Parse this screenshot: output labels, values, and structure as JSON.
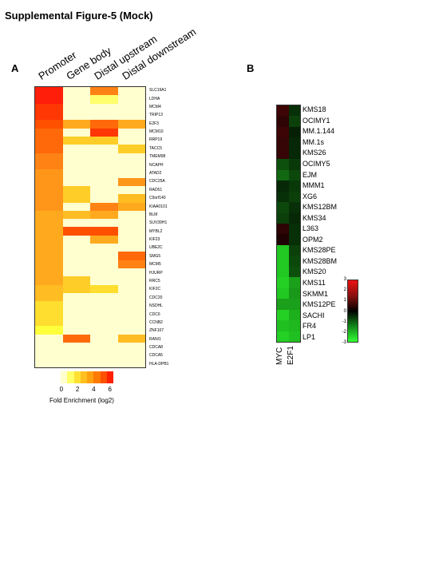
{
  "title": "Supplemental Figure-5 (Mock)",
  "panel_a": {
    "label": "A",
    "columns": [
      "Promoter",
      "Gene body",
      "Distal upstream",
      "Distal downstream"
    ],
    "genes": [
      "SLC19A1",
      "LDHA",
      "MCM4",
      "TRIP13",
      "E2F3",
      "MCM10",
      "RRP19",
      "TACC5",
      "TMEM98",
      "NCAPH",
      "ATAD2",
      "CDC25A",
      "RAD51",
      "C9orf140",
      "KIAA0101",
      "BLM",
      "SUV39H1",
      "MYBL2",
      "KIF23",
      "UBE2C",
      "SMG5",
      "MCM5",
      "HJURP",
      "RRC5",
      "KIF2C",
      "CDC20",
      "NSDHL",
      "CDC6",
      "CCNB2",
      "ZNF107",
      "RANI1",
      "CDCA8",
      "CDCA5",
      "HLA-DPB1"
    ],
    "scale_colors": [
      "#ffffcc",
      "#ffff66",
      "#ffe033",
      "#ffc020",
      "#ffa010",
      "#ff7a00",
      "#ff5000",
      "#ff2000"
    ],
    "scale_ticks": [
      "0",
      "2",
      "4",
      "6"
    ],
    "scale_title": "Fold Enrichment (log2)"
  },
  "panel_b": {
    "label": "B",
    "samples": [
      "KMS18",
      "OCIMY1",
      "MM.1.144",
      "MM.1s",
      "KMS26",
      "OCIMY5",
      "EJM",
      "MMM1",
      "XG6",
      "KMS12BM",
      "KMS34",
      "L363",
      "OPM2",
      "KMS28PE",
      "KMS28BM",
      "KMS20",
      "KMS11",
      "SKMM1",
      "KMS12PE",
      "SACHI",
      "FR4",
      "LP1"
    ],
    "columns": [
      "MYC",
      "E2F1"
    ],
    "scale_ticks": [
      "3",
      "2",
      "1",
      "0",
      "-1",
      "-2",
      "-3"
    ]
  },
  "chart_data": [
    {
      "type": "heatmap",
      "title": "",
      "x": [
        "Promoter",
        "Gene body",
        "Distal upstream",
        "Distal downstream"
      ],
      "y": [
        "SLC19A1",
        "LDHA",
        "MCM4",
        "TRIP13",
        "E2F3",
        "MCM10",
        "RRP19",
        "TACC5",
        "TMEM98",
        "NCAPH",
        "ATAD2",
        "CDC25A",
        "RAD51",
        "C9orf140",
        "KIAA0101",
        "BLM",
        "SUV39H1",
        "MYBL2",
        "KIF23",
        "UBE2C",
        "SMG5",
        "MCM5",
        "HJURP",
        "RRC5",
        "KIF2C",
        "CDC20",
        "NSDHL",
        "CDC6",
        "CCNB2",
        "ZNF107",
        "RANI1",
        "CDCA8",
        "CDCA5",
        "HLA-DPB1"
      ],
      "values": [
        [
          7.0,
          0,
          5.0,
          0
        ],
        [
          7.0,
          0,
          1.0,
          0
        ],
        [
          6.5,
          0,
          0,
          0
        ],
        [
          6.5,
          0,
          0,
          0
        ],
        [
          6.0,
          4.0,
          5.5,
          4.0
        ],
        [
          5.5,
          0,
          6.5,
          0
        ],
        [
          5.5,
          3.0,
          3.0,
          0
        ],
        [
          5.5,
          0,
          0,
          3.0
        ],
        [
          5.0,
          0,
          0,
          0
        ],
        [
          5.0,
          0,
          0,
          0
        ],
        [
          4.5,
          0,
          0,
          0
        ],
        [
          4.5,
          0,
          0,
          4.5
        ],
        [
          4.5,
          3.0,
          0,
          0
        ],
        [
          4.5,
          3.0,
          0,
          3.5
        ],
        [
          4.5,
          0,
          5.0,
          4.0
        ],
        [
          4.0,
          3.5,
          4.0,
          0
        ],
        [
          4.0,
          0,
          0,
          0
        ],
        [
          4.0,
          6.0,
          6.0,
          0
        ],
        [
          4.0,
          0,
          4.0,
          0
        ],
        [
          4.0,
          0,
          0,
          0
        ],
        [
          4.0,
          0,
          0,
          5.5
        ],
        [
          4.0,
          0,
          0,
          5.0
        ],
        [
          4.0,
          0,
          0,
          0
        ],
        [
          4.0,
          3.0,
          0,
          0
        ],
        [
          3.5,
          3.0,
          2.5,
          0
        ],
        [
          3.5,
          0,
          0,
          0
        ],
        [
          2.5,
          0,
          0,
          0
        ],
        [
          2.5,
          0,
          0,
          0
        ],
        [
          2.5,
          0,
          0,
          0
        ],
        [
          1.5,
          0,
          0,
          0
        ],
        [
          0,
          5.5,
          0,
          3.5
        ],
        [
          0,
          0,
          0,
          0
        ],
        [
          0,
          0,
          0,
          0
        ],
        [
          0,
          0,
          0,
          0
        ]
      ],
      "scale": {
        "min": 0,
        "max": 7,
        "ticks": [
          0,
          2,
          4,
          6
        ],
        "label": "Fold Enrichment (log2)"
      }
    },
    {
      "type": "heatmap",
      "title": "",
      "x": [
        "MYC",
        "E2F1"
      ],
      "y": [
        "KMS18",
        "OCIMY1",
        "MM.1.144",
        "MM.1s",
        "KMS26",
        "OCIMY5",
        "EJM",
        "MMM1",
        "XG6",
        "KMS12BM",
        "KMS34",
        "L363",
        "OPM2",
        "KMS28PE",
        "KMS28BM",
        "KMS20",
        "KMS11",
        "SKMM1",
        "KMS12PE",
        "SACHI",
        "FR4",
        "LP1"
      ],
      "values": [
        [
          0.8,
          -0.6
        ],
        [
          0.6,
          -0.8
        ],
        [
          0.8,
          -0.4
        ],
        [
          0.7,
          -0.5
        ],
        [
          0.7,
          -0.5
        ],
        [
          -1.0,
          -0.7
        ],
        [
          -1.3,
          -0.9
        ],
        [
          -0.5,
          -0.7
        ],
        [
          -0.6,
          -0.8
        ],
        [
          -0.9,
          -0.6
        ],
        [
          -0.8,
          -0.5
        ],
        [
          0.6,
          -0.6
        ],
        [
          0.4,
          -0.6
        ],
        [
          -2.5,
          -0.8
        ],
        [
          -2.5,
          -0.9
        ],
        [
          -2.5,
          -1.0
        ],
        [
          -2.6,
          -2.0
        ],
        [
          -2.5,
          -1.9
        ],
        [
          -2.0,
          -2.0
        ],
        [
          -2.6,
          -2.2
        ],
        [
          -2.4,
          -2.3
        ],
        [
          -2.6,
          -2.4
        ]
      ],
      "scale": {
        "min": -3,
        "max": 3,
        "ticks": [
          3,
          2,
          1,
          0,
          -1,
          -2,
          -3
        ]
      }
    }
  ]
}
